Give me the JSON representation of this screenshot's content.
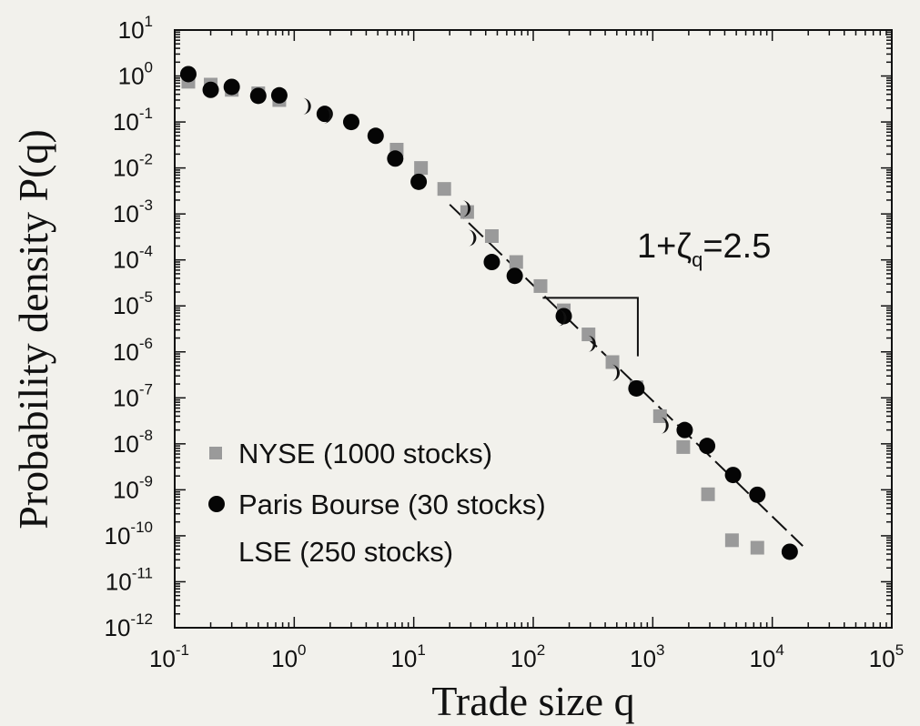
{
  "chart_data": {
    "type": "scatter",
    "title": "",
    "xlabel": "Trade size q",
    "ylabel": "Probability density P(q)",
    "xscale": "log",
    "yscale": "log",
    "xlim": [
      0.1,
      100000
    ],
    "ylim": [
      1e-12,
      10
    ],
    "x_ticks": [
      {
        "value": 0.1,
        "base": "10",
        "exp": "-1"
      },
      {
        "value": 1,
        "base": "10",
        "exp": "0"
      },
      {
        "value": 10,
        "base": "10",
        "exp": "1"
      },
      {
        "value": 100,
        "base": "10",
        "exp": "2"
      },
      {
        "value": 1000,
        "base": "10",
        "exp": "3"
      },
      {
        "value": 10000,
        "base": "10",
        "exp": "4"
      },
      {
        "value": 100000,
        "base": "10",
        "exp": "5"
      }
    ],
    "y_ticks": [
      {
        "value": 10,
        "base": "10",
        "exp": "1"
      },
      {
        "value": 1,
        "base": "10",
        "exp": "0"
      },
      {
        "value": 0.1,
        "base": "10",
        "exp": "-1"
      },
      {
        "value": 0.01,
        "base": "10",
        "exp": "-2"
      },
      {
        "value": 0.001,
        "base": "10",
        "exp": "-3"
      },
      {
        "value": 0.0001,
        "base": "10",
        "exp": "-4"
      },
      {
        "value": 1e-05,
        "base": "10",
        "exp": "-5"
      },
      {
        "value": 1e-06,
        "base": "10",
        "exp": "-6"
      },
      {
        "value": 1e-07,
        "base": "10",
        "exp": "-7"
      },
      {
        "value": 1e-08,
        "base": "10",
        "exp": "-8"
      },
      {
        "value": 1e-09,
        "base": "10",
        "exp": "-9"
      },
      {
        "value": 1e-10,
        "base": "10",
        "exp": "-10"
      },
      {
        "value": 1e-11,
        "base": "10",
        "exp": "-11"
      },
      {
        "value": 1e-12,
        "base": "10",
        "exp": "-12"
      }
    ],
    "series": [
      {
        "name": "NYSE (1000 stocks)",
        "marker": "square",
        "color": "#9a9a9a",
        "points": [
          [
            0.13,
            0.75
          ],
          [
            0.2,
            0.65
          ],
          [
            0.3,
            0.5
          ],
          [
            0.5,
            0.42
          ],
          [
            0.75,
            0.3
          ],
          [
            7.2,
            0.025
          ],
          [
            11.5,
            0.01
          ],
          [
            18,
            0.0035
          ],
          [
            28,
            0.0011
          ],
          [
            45,
            0.00033
          ],
          [
            72,
            9e-05
          ],
          [
            115,
            2.7e-05
          ],
          [
            180,
            8e-06
          ],
          [
            290,
            2.4e-06
          ],
          [
            460,
            6e-07
          ],
          [
            730,
            1.7e-07
          ],
          [
            1150,
            4e-08
          ],
          [
            1800,
            8.5e-09
          ],
          [
            2900,
            8e-10
          ],
          [
            4600,
            8e-11
          ],
          [
            7500,
            5.5e-11
          ]
        ]
      },
      {
        "name": "Paris Bourse (30 stocks)",
        "marker": "circle",
        "color": "#050505",
        "points": [
          [
            0.13,
            1.1
          ],
          [
            0.2,
            0.5
          ],
          [
            0.3,
            0.58
          ],
          [
            0.5,
            0.37
          ],
          [
            0.75,
            0.38
          ],
          [
            1.8,
            0.15
          ],
          [
            3,
            0.1
          ],
          [
            4.8,
            0.05
          ],
          [
            7,
            0.016
          ],
          [
            11,
            0.005
          ],
          [
            45,
            9e-05
          ],
          [
            70,
            4.5e-05
          ],
          [
            180,
            6e-06
          ],
          [
            730,
            1.6e-07
          ],
          [
            1850,
            2e-08
          ],
          [
            2850,
            9e-09
          ],
          [
            4700,
            2.1e-09
          ],
          [
            7500,
            7.8e-10
          ],
          [
            14000,
            4.5e-11
          ]
        ]
      },
      {
        "name": "LSE (250 stocks)",
        "marker": "crescent",
        "color": "#111111",
        "points": [
          [
            1.2,
            0.22
          ],
          [
            1.8,
            0.14
          ],
          [
            26,
            0.0013
          ],
          [
            29,
            0.0003
          ],
          [
            165,
            5.5e-06
          ],
          [
            290,
            1.5e-06
          ],
          [
            460,
            3.5e-07
          ],
          [
            1180,
            2.5e-08
          ]
        ]
      }
    ],
    "fit_line": {
      "style": "dashed",
      "from": [
        20,
        0.0016
      ],
      "to": [
        18000,
        6e-11
      ]
    },
    "annotation": {
      "text_main": "1+ζ",
      "text_sub": "q",
      "text_tail": "=2.5"
    },
    "legend_position": "bottom-left",
    "grid": false
  }
}
